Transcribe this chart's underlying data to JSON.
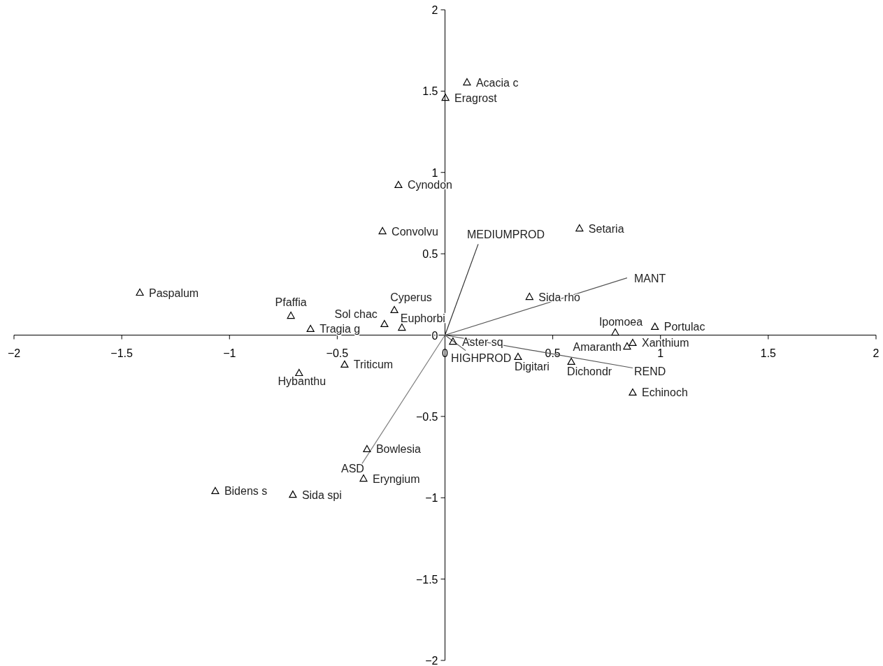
{
  "chart_data": {
    "type": "scatter",
    "xlim": [
      -2,
      2
    ],
    "ylim": [
      -2,
      2
    ],
    "xticks": [
      -2,
      -1.5,
      -1,
      -0.5,
      0,
      0.5,
      1,
      1.5,
      2
    ],
    "yticks": [
      -2,
      -1.5,
      -1,
      -0.5,
      0,
      0.5,
      1,
      1.5,
      2
    ],
    "grid": false,
    "series": [
      {
        "marker": "triangle",
        "color": "#000000",
        "x": [
          0.102,
          0.002,
          -0.216,
          -0.29,
          0.624,
          -1.416,
          -0.715,
          -0.624,
          -0.235,
          -0.281,
          -0.2,
          0.392,
          0.79,
          0.974,
          0.871,
          0.845,
          0.037,
          0.339,
          0.586,
          0.871,
          -0.466,
          -0.677,
          -0.362,
          -0.378,
          -1.066,
          -0.706
        ],
        "values": [
          1.555,
          1.46,
          0.924,
          0.64,
          0.657,
          0.262,
          0.12,
          0.039,
          0.155,
          0.069,
          0.047,
          0.236,
          0.017,
          0.052,
          -0.047,
          -0.069,
          -0.039,
          -0.133,
          -0.163,
          -0.352,
          -0.18,
          -0.232,
          -0.7,
          -0.881,
          -0.958,
          -0.98
        ]
      },
      {
        "type": "line",
        "name": "MEDIUMPROD",
        "color": "#333333",
        "marker": "none",
        "x": [
          0,
          0.154
        ],
        "values": [
          0,
          0.559
        ]
      },
      {
        "type": "line",
        "name": "MANT",
        "color": "#555555",
        "marker": "none",
        "x": [
          0,
          0.845
        ],
        "values": [
          0,
          0.352
        ]
      },
      {
        "type": "line",
        "name": "REND",
        "color": "#555555",
        "marker": "none",
        "x": [
          0,
          0.871
        ],
        "values": [
          0,
          -0.202
        ]
      },
      {
        "type": "line",
        "name": "HIGHPROD",
        "color": "#555555",
        "marker": "none",
        "x": [
          0,
          0.096
        ],
        "values": [
          0,
          -0.095
        ]
      },
      {
        "type": "line",
        "name": "ASD",
        "color": "#808080",
        "marker": "none",
        "x": [
          0,
          -0.391
        ],
        "values": [
          0,
          -0.803
        ]
      }
    ],
    "annotations": [
      {
        "text": "Acacia c",
        "x": 0.102,
        "y": 1.555
      },
      {
        "text": "Eragrost",
        "x": 0.002,
        "y": 1.46
      },
      {
        "text": "Cynodon",
        "x": -0.216,
        "y": 0.924
      },
      {
        "text": "Convolvu",
        "x": -0.29,
        "y": 0.64
      },
      {
        "text": "Setaria",
        "x": 0.624,
        "y": 0.657
      },
      {
        "text": "Paspalum",
        "x": -1.416,
        "y": 0.262
      },
      {
        "text": "Pfaffia",
        "x": -0.715,
        "y": 0.12
      },
      {
        "text": "Tragia g",
        "x": -0.624,
        "y": 0.039
      },
      {
        "text": "Cyperus",
        "x": -0.235,
        "y": 0.155
      },
      {
        "text": "Sol chac",
        "x": -0.281,
        "y": 0.069
      },
      {
        "text": "Euphorbi",
        "x": -0.2,
        "y": 0.047
      },
      {
        "text": "Sida rho",
        "x": 0.392,
        "y": 0.236
      },
      {
        "text": "Ipomoea",
        "x": 0.79,
        "y": 0.017
      },
      {
        "text": "Portulac",
        "x": 0.974,
        "y": 0.052
      },
      {
        "text": "Xanthium",
        "x": 0.871,
        "y": -0.047
      },
      {
        "text": "Amaranth",
        "x": 0.845,
        "y": -0.069
      },
      {
        "text": "Aster sq",
        "x": 0.037,
        "y": -0.039
      },
      {
        "text": "Digitari",
        "x": 0.339,
        "y": -0.133
      },
      {
        "text": "Dichondr",
        "x": 0.586,
        "y": -0.163
      },
      {
        "text": "Echinoch",
        "x": 0.871,
        "y": -0.352
      },
      {
        "text": "Triticum",
        "x": -0.466,
        "y": -0.18
      },
      {
        "text": "Hybanthu",
        "x": -0.677,
        "y": -0.232
      },
      {
        "text": "Bowlesia",
        "x": -0.362,
        "y": -0.7
      },
      {
        "text": "Eryngium",
        "x": -0.378,
        "y": -0.881
      },
      {
        "text": "Bidens s",
        "x": -1.066,
        "y": -0.958
      },
      {
        "text": "Sida spi",
        "x": -0.706,
        "y": -0.98
      }
    ]
  }
}
